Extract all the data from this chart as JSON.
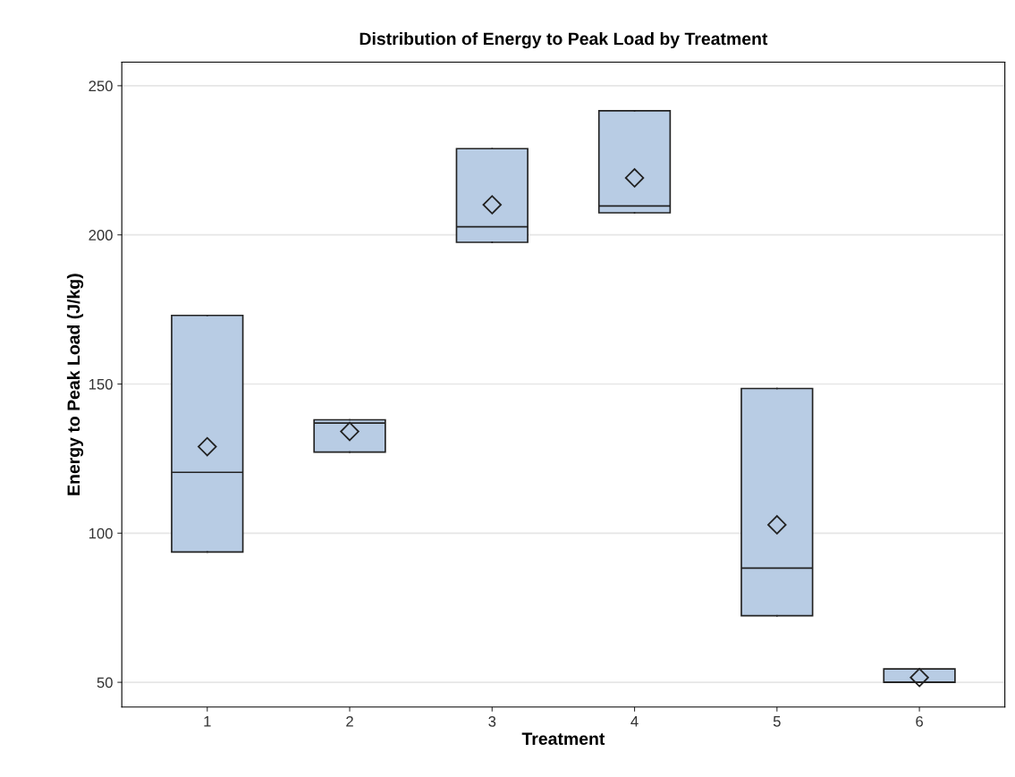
{
  "chart_data": {
    "type": "box",
    "title": "Distribution of Energy to Peak Load by Treatment",
    "xlabel": "Treatment",
    "ylabel": "Energy to Peak Load (J/kg)",
    "categories": [
      "1",
      "2",
      "3",
      "4",
      "5",
      "6"
    ],
    "color": "#b8cce4",
    "boxes": [
      {
        "low": 93.7,
        "q1": 93.7,
        "median": 120.4,
        "q3": 173.0,
        "high": 173.0,
        "mean": 129.0
      },
      {
        "low": 127.2,
        "q1": 127.2,
        "median": 136.9,
        "q3": 138.0,
        "high": 138.0,
        "mean": 134.1
      },
      {
        "low": 197.5,
        "q1": 197.5,
        "median": 202.7,
        "q3": 228.9,
        "high": 228.9,
        "mean": 210.1
      },
      {
        "low": 207.4,
        "q1": 207.4,
        "median": 209.7,
        "q3": 241.6,
        "high": 241.6,
        "mean": 219.1
      },
      {
        "low": 72.3,
        "q1": 72.3,
        "median": 88.3,
        "q3": 148.5,
        "high": 148.5,
        "mean": 102.8
      },
      {
        "low": 50.0,
        "q1": 50.0,
        "median": 50.0,
        "q3": 54.5,
        "high": 54.5,
        "mean": 51.6
      }
    ],
    "ylim": [
      41.7,
      257.9
    ],
    "yticks": [
      50,
      100,
      150,
      200,
      250
    ],
    "grid": "y",
    "marker": "diamond"
  }
}
